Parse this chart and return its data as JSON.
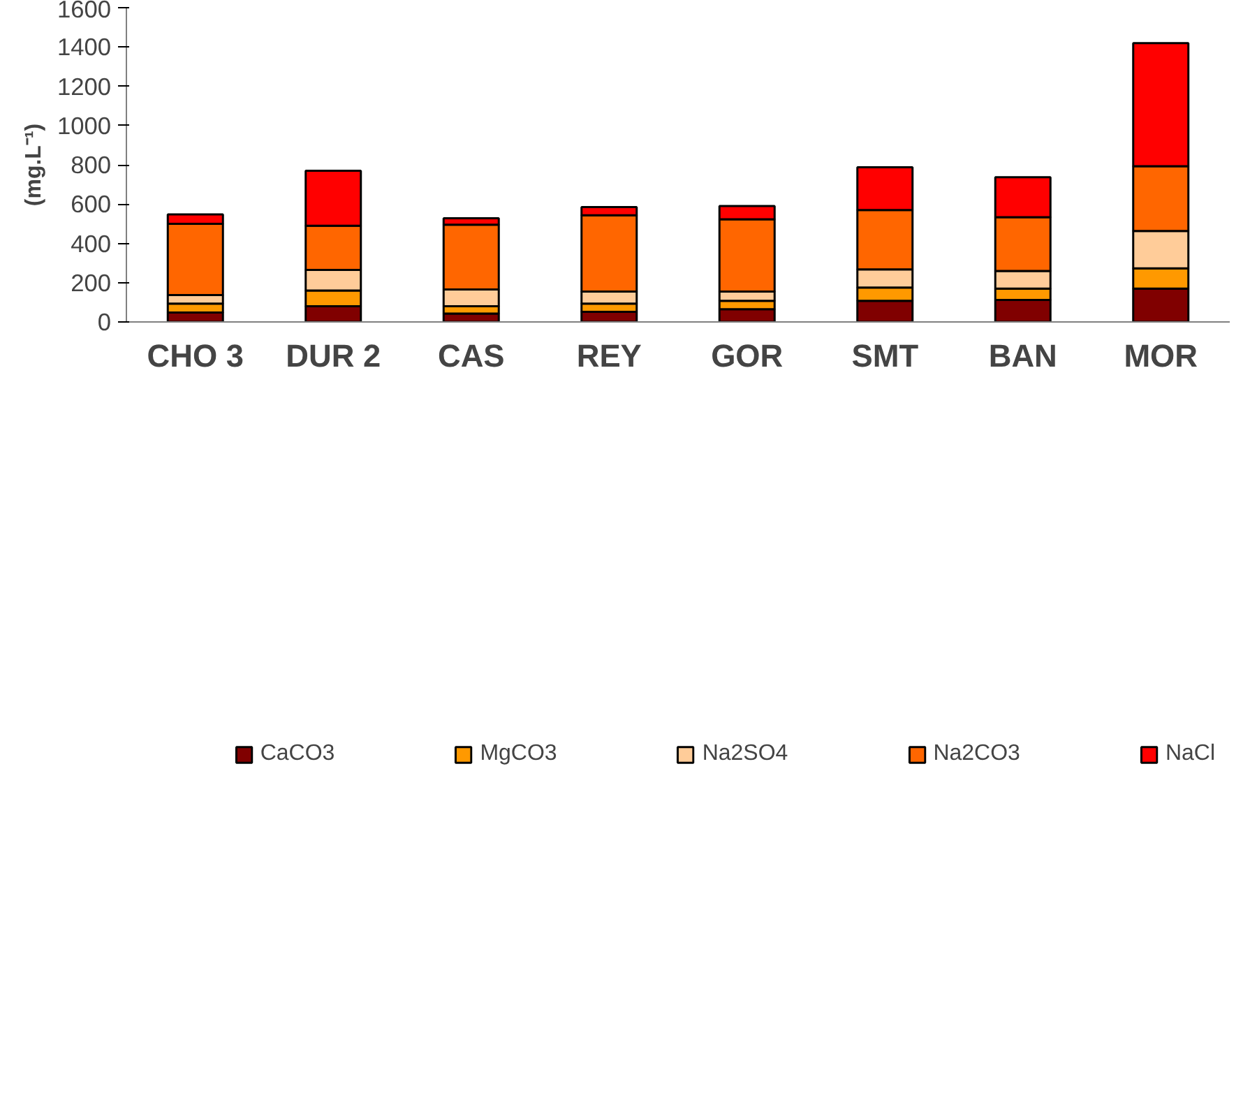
{
  "chart_data": {
    "type": "bar",
    "stacked": true,
    "ylabel": "(mg.L⁻¹)",
    "categories": [
      "CHO 3",
      "DUR 2",
      "CAS",
      "REY",
      "GOR",
      "SMT",
      "BAN",
      "MOR"
    ],
    "series": [
      {
        "name": "CaCO3",
        "color": "#800000",
        "values": [
          48,
          80,
          43,
          52,
          65,
          108,
          112,
          170
        ]
      },
      {
        "name": "MgCO3",
        "color": "#ff9900",
        "values": [
          45,
          80,
          37,
          41,
          43,
          67,
          58,
          103
        ]
      },
      {
        "name": "Na2SO4",
        "color": "#ffcc99",
        "values": [
          44,
          105,
          85,
          62,
          47,
          93,
          90,
          190
        ]
      },
      {
        "name": "Na2CO3",
        "color": "#ff6600",
        "values": [
          363,
          225,
          330,
          388,
          368,
          302,
          273,
          330
        ]
      },
      {
        "name": "NaCl",
        "color": "#ff0000",
        "values": [
          48,
          280,
          33,
          42,
          67,
          218,
          204,
          627
        ]
      }
    ],
    "ylim": [
      0,
      1600
    ],
    "yticks": [
      0,
      200,
      400,
      600,
      800,
      1000,
      1200,
      1400,
      1600
    ],
    "grid": false,
    "legend": "bottom"
  }
}
